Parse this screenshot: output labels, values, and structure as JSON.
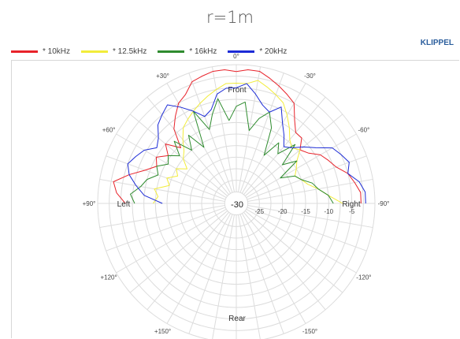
{
  "header": {
    "title": "r=1m",
    "brand": "KLIPPEL"
  },
  "chart_data": {
    "type": "polar-line",
    "title": "r=1m",
    "angle_labels": [
      {
        "deg": 0,
        "label": "0°"
      },
      {
        "deg": 30,
        "label": "-30°"
      },
      {
        "deg": 60,
        "label": "-60°"
      },
      {
        "deg": 90,
        "label": "-90°"
      },
      {
        "deg": 120,
        "label": "-120°"
      },
      {
        "deg": 150,
        "label": "-150°"
      },
      {
        "deg": -30,
        "label": "+30°"
      },
      {
        "deg": -60,
        "label": "+60°"
      },
      {
        "deg": -90,
        "label": "+90°"
      },
      {
        "deg": -120,
        "label": "+120°"
      },
      {
        "deg": -150,
        "label": "+150°"
      }
    ],
    "radial_range": [
      -30,
      0
    ],
    "radial_ticks": [
      {
        "value": -30,
        "label": "-30"
      },
      {
        "value": -25,
        "label": "-25"
      },
      {
        "value": -20,
        "label": "-20"
      },
      {
        "value": -15,
        "label": "-15"
      },
      {
        "value": -10,
        "label": "-10"
      },
      {
        "value": -5,
        "label": "-5"
      }
    ],
    "direction_labels": {
      "front": "Front",
      "rear": "Rear",
      "left": "Left",
      "right": "Right"
    },
    "grid": true,
    "legend_position": "top-left",
    "series": [
      {
        "name": "* 10kHz",
        "color": "#e8222a",
        "angles": [
          -90,
          -85,
          -80,
          -75,
          -70,
          -65,
          -60,
          -55,
          -50,
          -45,
          -40,
          -35,
          -30,
          -25,
          -20,
          -15,
          -10,
          -5,
          0,
          5,
          10,
          15,
          20,
          25,
          30,
          35,
          40,
          45,
          50,
          55,
          60,
          65,
          70,
          75,
          80,
          85,
          90
        ],
        "values": [
          -6,
          -4,
          -3,
          -6,
          -9,
          -11,
          -10,
          -12,
          -10,
          -13,
          -9,
          -7,
          -5,
          -4,
          -2,
          -1.5,
          -1,
          -1,
          -1.5,
          -1,
          -1,
          -2,
          -3,
          -4,
          -5,
          -8,
          -10,
          -10,
          -12,
          -11,
          -9,
          -8,
          -7,
          -5,
          -4,
          -3,
          -3
        ]
      },
      {
        "name": "* 12.5kHz",
        "color": "#f2ec3a",
        "angles": [
          -90,
          -85,
          -80,
          -75,
          -70,
          -65,
          -60,
          -55,
          -50,
          -45,
          -40,
          -35,
          -30,
          -25,
          -20,
          -15,
          -10,
          -5,
          0,
          5,
          10,
          15,
          20,
          25,
          30,
          35,
          40,
          45,
          50,
          55,
          60,
          65,
          70,
          75,
          80,
          85,
          90
        ],
        "values": [
          -12,
          -13,
          -12,
          -15,
          -14,
          -16,
          -15,
          -17,
          -15,
          -14,
          -12,
          -10,
          -9,
          -8,
          -7,
          -6,
          -5,
          -4,
          -4,
          -4,
          -3,
          -4,
          -5,
          -6,
          -8,
          -10,
          -12,
          -13,
          -12,
          -14,
          -15,
          -16,
          -15,
          -14,
          -12,
          -10,
          -7
        ]
      },
      {
        "name": "* 16kHz",
        "color": "#2e8b2e",
        "angles": [
          -90,
          -85,
          -80,
          -75,
          -70,
          -65,
          -60,
          -55,
          -50,
          -45,
          -40,
          -35,
          -30,
          -25,
          -20,
          -15,
          -10,
          -5,
          0,
          5,
          10,
          15,
          20,
          25,
          30,
          35,
          40,
          45,
          50,
          55,
          60,
          65,
          70,
          75,
          80,
          85,
          90
        ],
        "values": [
          -8,
          -7,
          -9,
          -10,
          -12,
          -11,
          -13,
          -12,
          -14,
          -11,
          -15,
          -12,
          -16,
          -8,
          -13,
          -10,
          -7,
          -12,
          -9,
          -8,
          -14,
          -11,
          -9,
          -12,
          -18,
          -14,
          -16,
          -12,
          -17,
          -14,
          -19,
          -16,
          -15,
          -13,
          -12,
          -10,
          -9
        ]
      },
      {
        "name": "* 20kHz",
        "color": "#1c2bd6",
        "angles": [
          -90,
          -85,
          -80,
          -75,
          -70,
          -65,
          -60,
          -55,
          -50,
          -45,
          -40,
          -35,
          -30,
          -25,
          -20,
          -15,
          -10,
          -5,
          0,
          5,
          10,
          15,
          20,
          25,
          30,
          35,
          40,
          45,
          50,
          55,
          60,
          65,
          70,
          75,
          80,
          85,
          90
        ],
        "values": [
          -14,
          -10,
          -8,
          -6,
          -5,
          -6,
          -7,
          -9,
          -8,
          -6,
          -5,
          -4,
          -6,
          -8,
          -10,
          -9,
          -6,
          -5,
          -5,
          -4,
          -6,
          -8,
          -9,
          -7,
          -10,
          -12,
          -14,
          -13,
          -11,
          -9,
          -6,
          -5,
          -4,
          -5,
          -3,
          -2,
          -2
        ]
      }
    ]
  }
}
